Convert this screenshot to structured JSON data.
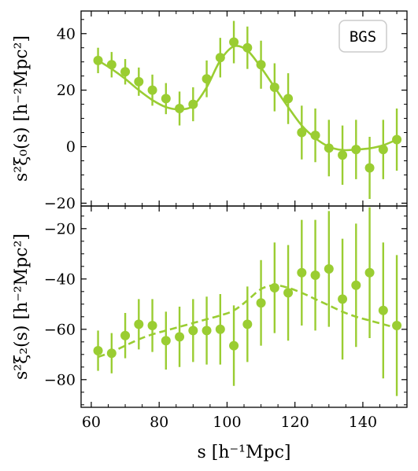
{
  "chart_data": [
    {
      "type": "scatter",
      "panel": "monopole",
      "ylabel": "s²ξ₀(s) [h⁻²Mpc²]",
      "xlim": [
        57,
        153
      ],
      "ylim": [
        -21,
        48
      ],
      "yticks": [
        -20,
        0,
        20,
        40
      ],
      "grid": false,
      "legend": {
        "label": "BGS",
        "placement": "top-right"
      },
      "color": "#9acd32",
      "points": {
        "x": [
          62,
          66,
          70,
          74,
          78,
          82,
          86,
          90,
          94,
          98,
          102,
          106,
          110,
          114,
          118,
          122,
          126,
          130,
          134,
          138,
          142,
          146,
          150
        ],
        "y": [
          30.5,
          29.0,
          26.5,
          23.0,
          20.0,
          17.0,
          13.5,
          15.0,
          24.0,
          31.5,
          37.0,
          35.0,
          29.0,
          21.0,
          17.0,
          5.0,
          4.0,
          -0.5,
          -3.0,
          -1.0,
          -7.5,
          -1.0,
          2.5
        ],
        "err": [
          4.5,
          4.5,
          4.5,
          5.0,
          5.5,
          5.5,
          6.0,
          6.0,
          6.5,
          7.0,
          7.5,
          7.5,
          8.5,
          8.5,
          9.0,
          9.5,
          9.5,
          10.0,
          10.5,
          10.5,
          11.0,
          10.5,
          11.0
        ]
      },
      "model": {
        "style": "solid",
        "x": [
          62,
          66,
          70,
          74,
          78,
          82,
          86,
          90,
          94,
          98,
          102,
          106,
          110,
          114,
          118,
          122,
          126,
          130,
          134,
          138,
          142,
          146,
          150
        ],
        "y": [
          30.5,
          27.5,
          24.0,
          20.0,
          16.5,
          14.0,
          13.2,
          14.5,
          21.0,
          30.5,
          35.5,
          34.0,
          28.0,
          21.0,
          14.0,
          7.5,
          3.0,
          0.0,
          -1.2,
          -1.0,
          -0.6,
          0.5,
          2.5
        ]
      }
    },
    {
      "type": "scatter",
      "panel": "quadrupole",
      "xlabel": "s [h⁻¹Mpc]",
      "ylabel": "s²ξ₂(s) [h⁻²Mpc²]",
      "xlim": [
        57,
        153
      ],
      "ylim": [
        -91,
        -11
      ],
      "xticks": [
        60,
        80,
        100,
        120,
        140
      ],
      "yticks": [
        -80,
        -60,
        -40,
        -20
      ],
      "grid": false,
      "color": "#9acd32",
      "points": {
        "x": [
          62,
          66,
          70,
          74,
          78,
          82,
          86,
          90,
          94,
          98,
          102,
          106,
          110,
          114,
          118,
          122,
          126,
          130,
          134,
          138,
          142,
          146,
          150
        ],
        "y": [
          -68.5,
          -69.5,
          -62.5,
          -58.0,
          -58.5,
          -64.5,
          -63.0,
          -60.5,
          -60.5,
          -60.0,
          -66.5,
          -58.0,
          -49.5,
          -43.5,
          -45.5,
          -37.5,
          -38.5,
          -36.0,
          -48.0,
          -42.5,
          -37.5,
          -52.5,
          -58.5
        ],
        "err": [
          8.0,
          8.0,
          9.0,
          10.0,
          10.5,
          11.5,
          12.0,
          12.5,
          13.5,
          14.0,
          16.0,
          15.0,
          17.0,
          18.0,
          19.0,
          21.0,
          22.0,
          23.0,
          24.0,
          24.5,
          26.0,
          27.0,
          28.0
        ]
      },
      "model": {
        "style": "dashed",
        "x": [
          62,
          66,
          70,
          74,
          78,
          82,
          86,
          90,
          94,
          98,
          102,
          106,
          110,
          114,
          118,
          122,
          126,
          130,
          134,
          138,
          142,
          146,
          150
        ],
        "y": [
          -71.0,
          -69.0,
          -66.5,
          -64.0,
          -62.0,
          -60.5,
          -59.0,
          -57.5,
          -56.0,
          -54.5,
          -52.5,
          -48.5,
          -44.0,
          -42.5,
          -43.5,
          -45.5,
          -48.0,
          -50.5,
          -53.0,
          -55.0,
          -56.5,
          -58.0,
          -59.5
        ]
      }
    }
  ]
}
